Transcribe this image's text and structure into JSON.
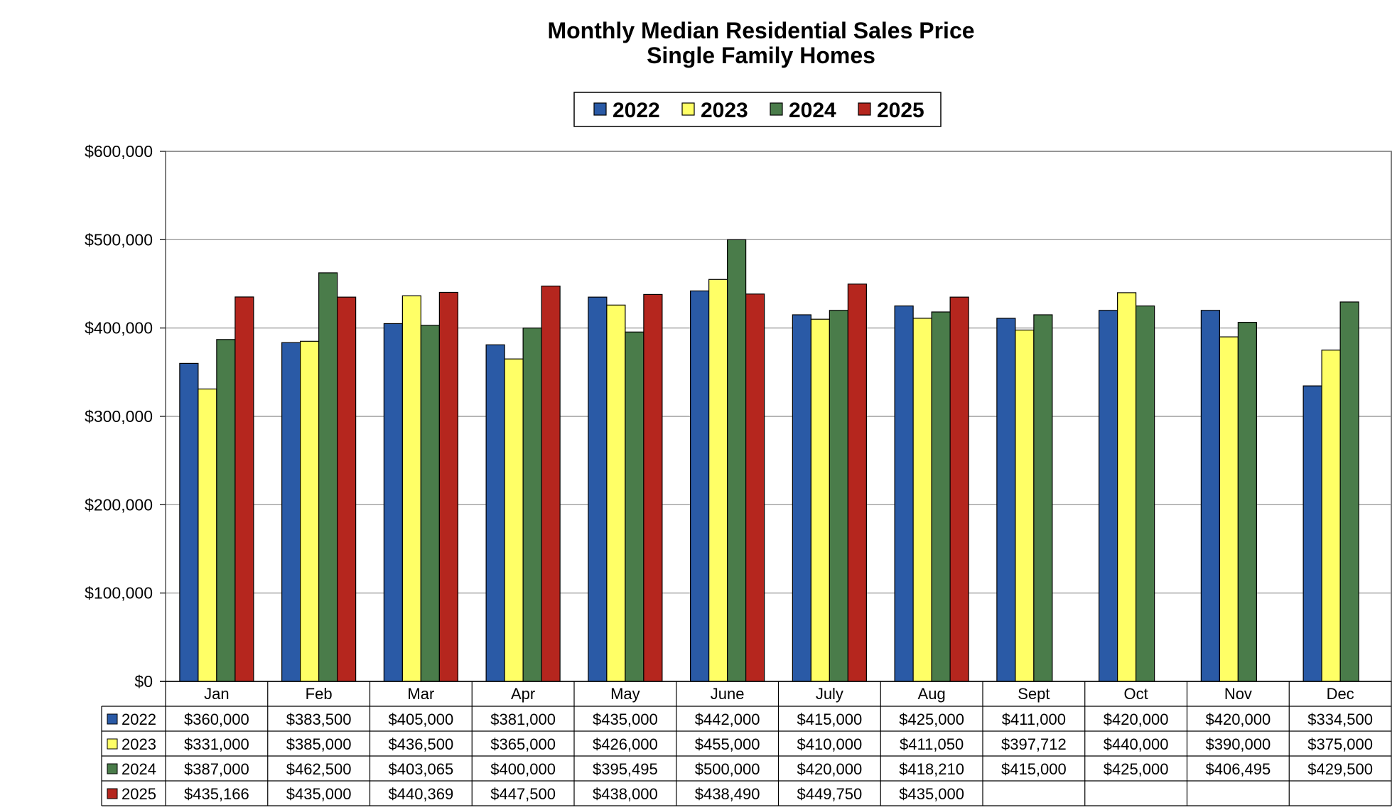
{
  "chart_data": {
    "type": "bar",
    "title": "Monthly Median Residential Sales Price",
    "subtitle": "Single Family Homes",
    "xlabel": "",
    "ylabel": "",
    "ylim": [
      0,
      600000
    ],
    "yticks": [
      {
        "value": 0,
        "label": "$0"
      },
      {
        "value": 100000,
        "label": "$100,000"
      },
      {
        "value": 200000,
        "label": "$200,000"
      },
      {
        "value": 300000,
        "label": "$300,000"
      },
      {
        "value": 400000,
        "label": "$400,000"
      },
      {
        "value": 500000,
        "label": "$500,000"
      },
      {
        "value": 600000,
        "label": "$600,000"
      }
    ],
    "grid": true,
    "legend_position": "top-center",
    "categories": [
      "Jan",
      "Feb",
      "Mar",
      "Apr",
      "May",
      "June",
      "July",
      "Aug",
      "Sept",
      "Oct",
      "Nov",
      "Dec"
    ],
    "series": [
      {
        "name": "2022",
        "color": "#2a5aa6",
        "values": [
          360000,
          383500,
          405000,
          381000,
          435000,
          442000,
          415000,
          425000,
          411000,
          420000,
          420000,
          334500
        ],
        "labels": [
          "$360,000",
          "$383,500",
          "$405,000",
          "$381,000",
          "$435,000",
          "$442,000",
          "$415,000",
          "$425,000",
          "$411,000",
          "$420,000",
          "$420,000",
          "$334,500"
        ]
      },
      {
        "name": "2023",
        "color": "#ffff66",
        "values": [
          331000,
          385000,
          436500,
          365000,
          426000,
          455000,
          410000,
          411050,
          397712,
          440000,
          390000,
          375000
        ],
        "labels": [
          "$331,000",
          "$385,000",
          "$436,500",
          "$365,000",
          "$426,000",
          "$455,000",
          "$410,000",
          "$411,050",
          "$397,712",
          "$440,000",
          "$390,000",
          "$375,000"
        ]
      },
      {
        "name": "2024",
        "color": "#4a7c4a",
        "values": [
          387000,
          462500,
          403065,
          400000,
          395495,
          500000,
          420000,
          418210,
          415000,
          425000,
          406495,
          429500
        ],
        "labels": [
          "$387,000",
          "$462,500",
          "$403,065",
          "$400,000",
          "$395,495",
          "$500,000",
          "$420,000",
          "$418,210",
          "$415,000",
          "$425,000",
          "$406,495",
          "$429,500"
        ]
      },
      {
        "name": "2025",
        "color": "#b5261e",
        "values": [
          435166,
          435000,
          440369,
          447500,
          438000,
          438490,
          449750,
          435000,
          null,
          null,
          null,
          null
        ],
        "labels": [
          "$435,166",
          "$435,000",
          "$440,369",
          "$447,500",
          "$438,000",
          "$438,490",
          "$449,750",
          "$435,000",
          "",
          "",
          "",
          ""
        ]
      }
    ]
  }
}
